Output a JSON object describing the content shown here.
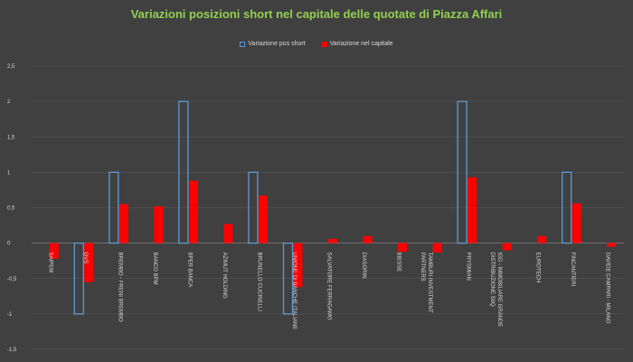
{
  "chart_data": {
    "type": "bar",
    "title": "Variazioni posizioni short nel capitale delle quotate di Piazza Affari",
    "xlabel": "",
    "ylabel": "",
    "ylim": [
      -1.5,
      2.5
    ],
    "yticks": [
      -1.5,
      -1,
      -0.5,
      0,
      0.5,
      1,
      1.5,
      2,
      2.5
    ],
    "ytick_labels": [
      "-1,5",
      "-1",
      "-0,5",
      "0",
      "0,5",
      "1",
      "1,5",
      "2",
      "2,5"
    ],
    "grid": true,
    "legend_position": "top",
    "categories": [
      "SAIPEM",
      "OVS",
      "BREMBO - FRENI BREMBO",
      "BANCO BPM",
      "BPER BANCA",
      "AZIMUT HOLDING",
      "BRUNELLO CUCINELLI",
      "UNIONE DI BANCHE ITALIANE",
      "SALVATORE FERRAGAMO",
      "DIASORIN",
      "BIESSE",
      "TAMBURI INVESTMENT PARTNERS",
      "PRYSMIAN",
      "IGD - IMMOBILIARE GRANDE DISTRIBUZIONE SIIQ",
      "EUROTECH",
      "FINCANTIERI",
      "DAVIDE CAMPARI - MILANO"
    ],
    "category_lines": [
      [
        "SAIPEM"
      ],
      [
        "OVS"
      ],
      [
        "BREMBO - FRENI BREMBO"
      ],
      [
        "BANCO BPM"
      ],
      [
        "BPER BANCA"
      ],
      [
        "AZIMUT HOLDING"
      ],
      [
        "BRUNELLO CUCINELLI"
      ],
      [
        "UNIONE DI BANCHE ITALIANE"
      ],
      [
        "SALVATORE FERRAGAMO"
      ],
      [
        "DIASORIN"
      ],
      [
        "BIESSE"
      ],
      [
        "TAMBURI INVESTMENT",
        "PARTNERS"
      ],
      [
        "PRYSMIAN"
      ],
      [
        "IGD - IMMOBILIARE GRANDE",
        "DISTRIBUZIONE SIIQ"
      ],
      [
        "EUROTECH"
      ],
      [
        "FINCANTIERI"
      ],
      [
        "DAVIDE CAMPARI - MILANO"
      ]
    ],
    "series": [
      {
        "name": "Variazione pos short",
        "color": "#5b9bd5",
        "style": "outline",
        "values": [
          0,
          -1,
          1,
          0,
          2,
          0,
          1,
          -1,
          0,
          0,
          0,
          0,
          2,
          0,
          0,
          1,
          0
        ]
      },
      {
        "name": "Variazione nel capitale",
        "color": "#ff0000",
        "style": "filled",
        "values": [
          -0.22,
          -0.55,
          0.55,
          0.52,
          0.88,
          0.27,
          0.67,
          -0.62,
          0.06,
          0.1,
          -0.12,
          -0.13,
          0.93,
          -0.1,
          0.1,
          0.56,
          -0.05
        ]
      }
    ]
  }
}
